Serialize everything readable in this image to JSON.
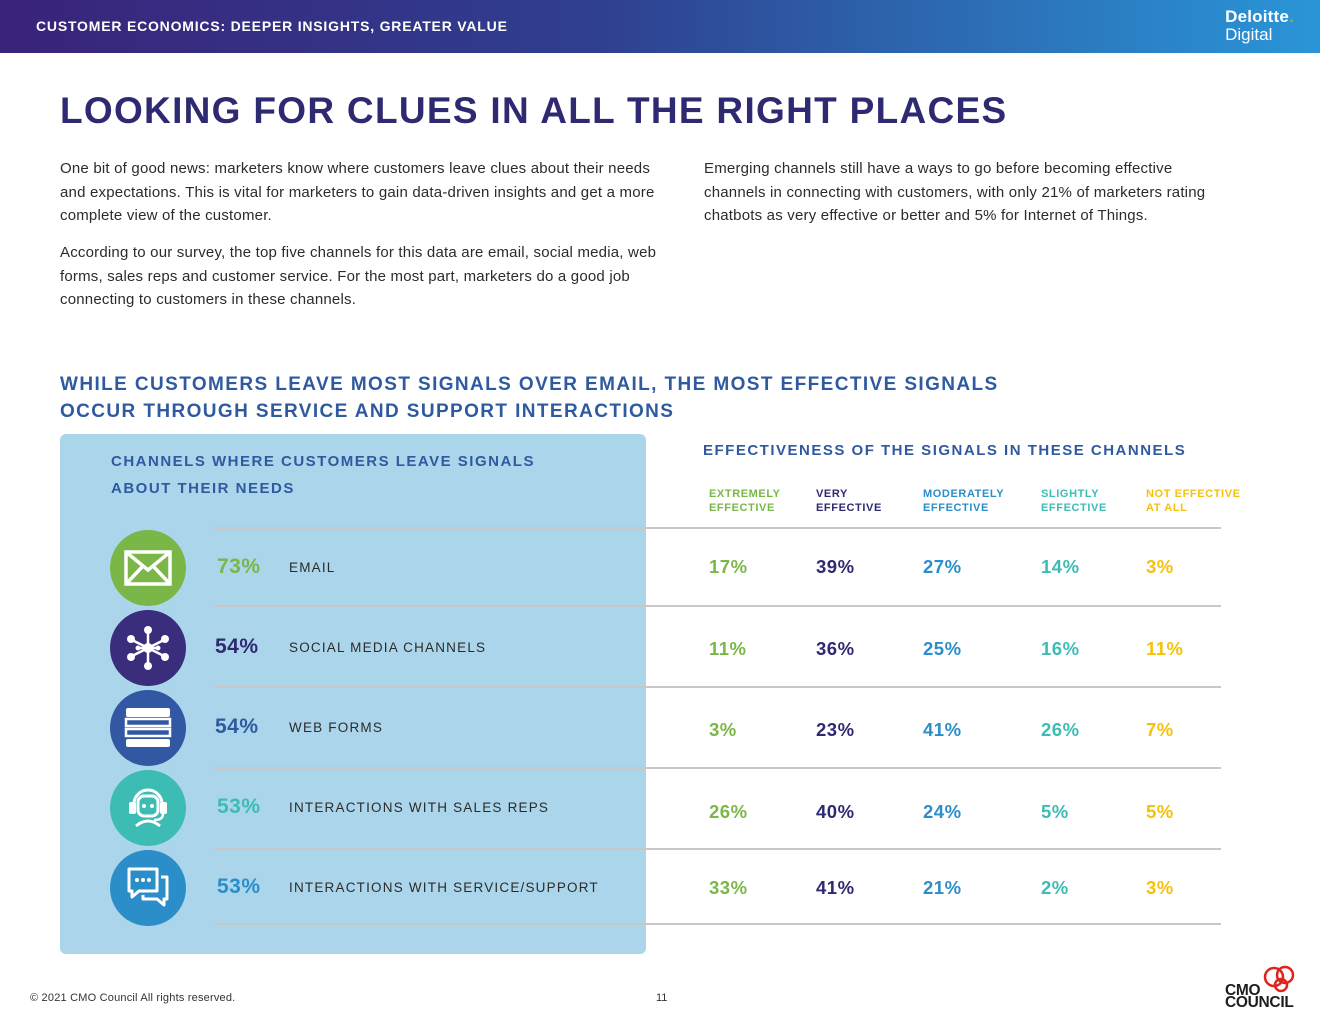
{
  "header": {
    "title": "CUSTOMER ECONOMICS: DEEPER INSIGHTS, GREATER VALUE",
    "logo_line1": "Deloitte",
    "logo_dot": ".",
    "logo_line2": "Digital"
  },
  "page_title": "LOOKING FOR CLUES IN ALL THE RIGHT PLACES",
  "paragraphs": {
    "p1": "One bit of good news: marketers know where customers leave clues about their needs and expectations. This is vital for marketers to gain data-driven insights and get a more complete view of the customer.",
    "p2": "According to our survey, the top five channels for this data are email, social media, web forms, sales reps and customer service. For the most part, marketers do a good job connecting to customers in these channels.",
    "p3": "Emerging channels still have a ways to go before becoming effective channels in connecting with customers, with only 21% of marketers rating chatbots as very effective or better and 5% for Internet of Things."
  },
  "subtitle_line1": "WHILE CUSTOMERS LEAVE MOST SIGNALS OVER EMAIL, THE MOST EFFECTIVE SIGNALS",
  "subtitle_line2": "OCCUR THROUGH SERVICE AND SUPPORT INTERACTIONS",
  "left_panel": {
    "title_line1": "CHANNELS WHERE CUSTOMERS LEAVE SIGNALS",
    "title_line2": "ABOUT THEIR NEEDS"
  },
  "right_title": "EFFECTIVENESS OF THE SIGNALS IN THESE CHANNELS",
  "colors": {
    "extremely": "#7ab648",
    "very": "#2e2a72",
    "moderately": "#2b8ec9",
    "slightly": "#3dbcb4",
    "not": "#f4c20d"
  },
  "columns": [
    {
      "line1": "EXTREMELY",
      "line2": "EFFECTIVE",
      "color": "#7ab648"
    },
    {
      "line1": "VERY",
      "line2": "EFFECTIVE",
      "color": "#2e2a72"
    },
    {
      "line1": "MODERATELY",
      "line2": "EFFECTIVE",
      "color": "#2b8ec9"
    },
    {
      "line1": "SLIGHTLY",
      "line2": "EFFECTIVE",
      "color": "#3dbcb4"
    },
    {
      "line1": "NOT EFFECTIVE",
      "line2": "AT ALL",
      "color": "#f4c20d"
    }
  ],
  "rows": [
    {
      "icon": "envelope-icon",
      "icon_color": "#7ab648",
      "pct": "73%",
      "pct_color": "#7ab648",
      "label": "EMAIL",
      "values": [
        "17%",
        "39%",
        "27%",
        "14%",
        "3%"
      ]
    },
    {
      "icon": "network-icon",
      "icon_color": "#3a2d7c",
      "pct": "54%",
      "pct_color": "#2e2a72",
      "label": "SOCIAL MEDIA CHANNELS",
      "values": [
        "11%",
        "36%",
        "25%",
        "16%",
        "11%"
      ]
    },
    {
      "icon": "web-form-icon",
      "icon_color": "#3358a3",
      "pct": "54%",
      "pct_color": "#2f5aa0",
      "label": "WEB FORMS",
      "values": [
        "3%",
        "23%",
        "41%",
        "26%",
        "7%"
      ]
    },
    {
      "icon": "headset-agent-icon",
      "icon_color": "#3dbcb4",
      "pct": "53%",
      "pct_color": "#3dbcb4",
      "label": "INTERACTIONS WITH SALES REPS",
      "values": [
        "26%",
        "40%",
        "24%",
        "5%",
        "5%"
      ]
    },
    {
      "icon": "chat-bubbles-icon",
      "icon_color": "#2b8ec9",
      "pct": "53%",
      "pct_color": "#2b8ec9",
      "label": "INTERACTIONS WITH SERVICE/SUPPORT",
      "values": [
        "33%",
        "41%",
        "21%",
        "2%",
        "3%"
      ]
    }
  ],
  "footer": {
    "copyright": "© 2021 CMO Council  All rights reserved.",
    "page_number": "11",
    "cmo_line1": "CMO",
    "cmo_line2": "COUNCIL"
  }
}
